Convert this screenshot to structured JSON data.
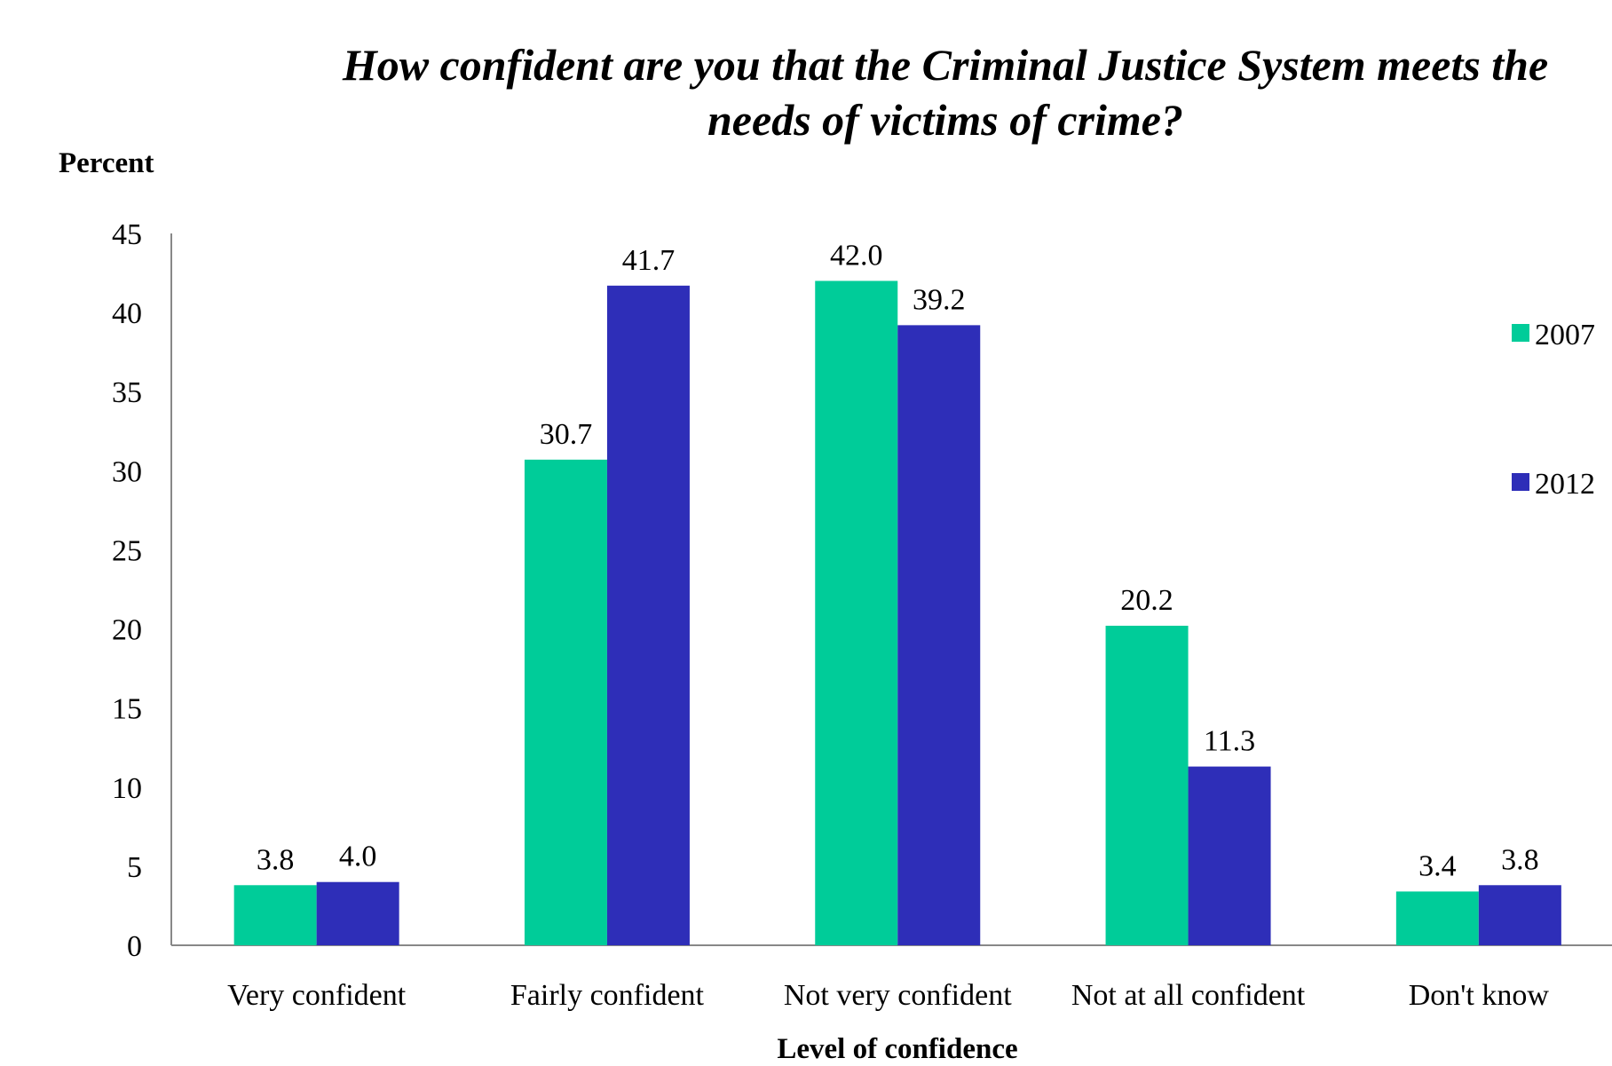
{
  "chart_data": {
    "type": "bar",
    "title_line1": "How confident are you that the Criminal Justice System meets the",
    "title_line2": "needs of victims of crime?",
    "ylabel": "Percent",
    "xlabel": "Level of confidence",
    "categories": [
      "Very confident",
      "Fairly confident",
      "Not very confident",
      "Not at all confident",
      "Don't know"
    ],
    "series": [
      {
        "name": "2007",
        "color": "#00cc99",
        "values": [
          3.8,
          30.7,
          42.0,
          20.2,
          3.4
        ],
        "labels": [
          "3.8",
          "30.7",
          "42.0",
          "20.2",
          "3.4"
        ]
      },
      {
        "name": "2012",
        "color": "#2e2eb8",
        "values": [
          4.0,
          41.7,
          39.2,
          11.3,
          3.8
        ],
        "labels": [
          "4.0",
          "41.7",
          "39.2",
          "11.3",
          "3.8"
        ]
      }
    ],
    "ylim": [
      0,
      45
    ],
    "yticks": [
      "0",
      "5",
      "10",
      "15",
      "20",
      "25",
      "30",
      "35",
      "40",
      "45"
    ],
    "grid": false,
    "legend_position": "right"
  }
}
